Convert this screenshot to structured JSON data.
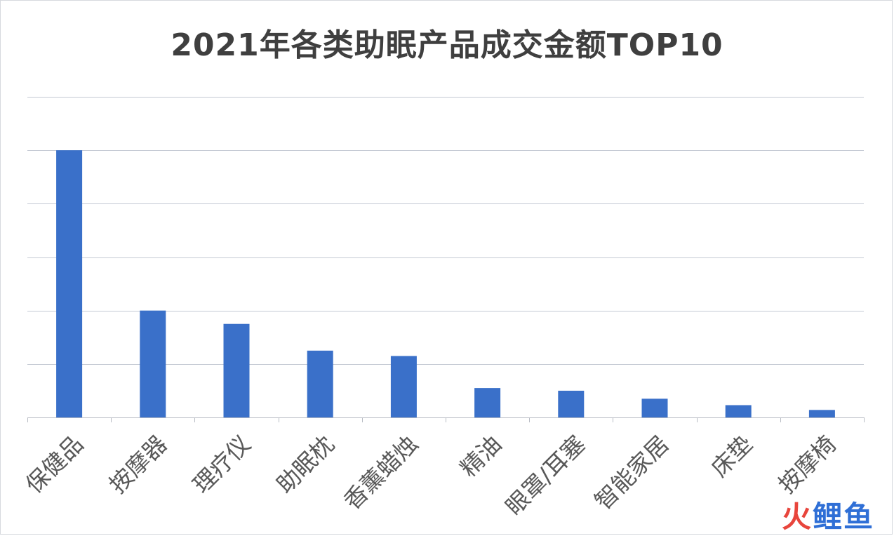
{
  "chart_data": {
    "type": "bar",
    "title": "2021年各类助眠产品成交金额TOP10",
    "xlabel": "",
    "ylabel": "",
    "categories": [
      "保健品",
      "按摩器",
      "理疗仪",
      "助眠枕",
      "香薰蜡烛",
      "精油",
      "眼罩/耳塞",
      "智能家居",
      "床垫",
      "按摩椅"
    ],
    "values": [
      50,
      20,
      17.5,
      12.5,
      11.5,
      5.5,
      5,
      3.5,
      2.3,
      1.4
    ],
    "ylim": [
      0,
      60
    ],
    "y_tick_labels_shown": false,
    "grid": true,
    "bar_color": "#3a70c9",
    "grid_color": "#c5cad4"
  },
  "watermark": {
    "part1": "火",
    "part2": "鲤鱼"
  }
}
